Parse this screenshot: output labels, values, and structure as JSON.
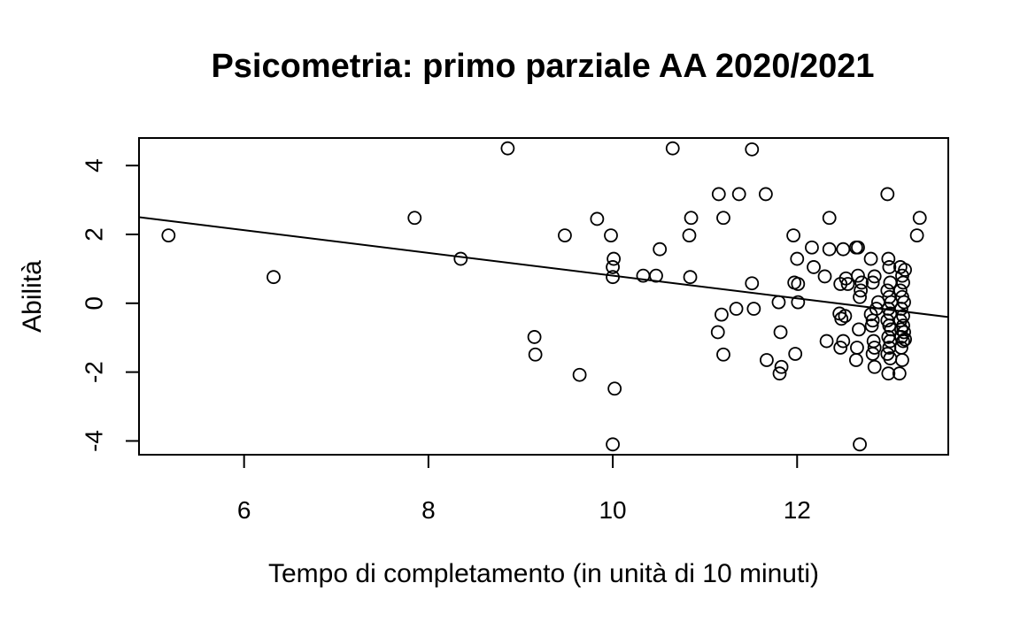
{
  "chart_data": {
    "type": "scatter",
    "title": "Psicometria: primo parziale AA 2020/2021",
    "xlabel": "Tempo di completamento (in unità di 10 minuti)",
    "ylabel": "Abilità",
    "xlim": [
      4.86,
      13.64
    ],
    "ylim": [
      -4.4,
      4.8
    ],
    "x_ticks": [
      6,
      8,
      10,
      12
    ],
    "y_ticks": [
      -4,
      -2,
      0,
      2,
      4
    ],
    "y_tick_labels": [
      "-4",
      "-2",
      "0",
      "2",
      "4"
    ],
    "grid": false,
    "legend": "none",
    "marker": "open-circle",
    "colors": {
      "points": "#000000",
      "line": "#000000",
      "background": "#ffffff"
    },
    "regression_line": {
      "x": [
        4.86,
        13.64
      ],
      "y": [
        2.5,
        -0.4
      ]
    },
    "points": [
      [
        5.18,
        1.97
      ],
      [
        6.32,
        0.76
      ],
      [
        7.85,
        2.48
      ],
      [
        8.35,
        1.29
      ],
      [
        8.86,
        4.5
      ],
      [
        9.15,
        -0.98
      ],
      [
        9.16,
        -1.49
      ],
      [
        9.48,
        1.97
      ],
      [
        9.64,
        -2.08
      ],
      [
        9.83,
        2.45
      ],
      [
        9.98,
        1.97
      ],
      [
        10.0,
        1.05
      ],
      [
        10.0,
        0.76
      ],
      [
        10.01,
        1.29
      ],
      [
        10.02,
        -2.48
      ],
      [
        10.0,
        -4.1
      ],
      [
        10.33,
        0.8
      ],
      [
        10.47,
        0.8
      ],
      [
        10.51,
        1.57
      ],
      [
        10.65,
        4.5
      ],
      [
        10.83,
        1.97
      ],
      [
        10.84,
        0.76
      ],
      [
        10.85,
        2.48
      ],
      [
        11.15,
        3.17
      ],
      [
        11.14,
        -0.84
      ],
      [
        11.18,
        -0.33
      ],
      [
        11.2,
        2.48
      ],
      [
        11.2,
        -1.49
      ],
      [
        11.34,
        -0.16
      ],
      [
        11.37,
        3.17
      ],
      [
        11.51,
        4.47
      ],
      [
        11.51,
        0.58
      ],
      [
        11.53,
        -0.16
      ],
      [
        11.66,
        3.17
      ],
      [
        11.67,
        -1.65
      ],
      [
        11.8,
        0.03
      ],
      [
        11.82,
        -0.84
      ],
      [
        11.83,
        -1.85
      ],
      [
        11.81,
        -2.04
      ],
      [
        11.96,
        1.97
      ],
      [
        11.97,
        0.6
      ],
      [
        11.98,
        -1.47
      ],
      [
        12.0,
        1.29
      ],
      [
        12.01,
        0.56
      ],
      [
        12.01,
        0.03
      ],
      [
        12.16,
        1.62
      ],
      [
        12.18,
        1.05
      ],
      [
        12.3,
        0.78
      ],
      [
        12.32,
        -1.1
      ],
      [
        12.35,
        1.57
      ],
      [
        12.35,
        2.48
      ],
      [
        12.46,
        -0.3
      ],
      [
        12.48,
        -0.45
      ],
      [
        12.47,
        0.56
      ],
      [
        12.5,
        1.57
      ],
      [
        12.5,
        -1.1
      ],
      [
        12.47,
        -1.29
      ],
      [
        12.52,
        -0.37
      ],
      [
        12.53,
        0.72
      ],
      [
        12.55,
        0.56
      ],
      [
        12.64,
        1.62
      ],
      [
        12.66,
        1.62
      ],
      [
        12.66,
        0.8
      ],
      [
        12.64,
        -1.65
      ],
      [
        12.65,
        -1.29
      ],
      [
        12.67,
        -0.76
      ],
      [
        12.68,
        0.18
      ],
      [
        12.69,
        0.37
      ],
      [
        12.7,
        0.6
      ],
      [
        12.68,
        -4.1
      ],
      [
        12.8,
        1.29
      ],
      [
        12.82,
        0.6
      ],
      [
        12.84,
        0.78
      ],
      [
        12.8,
        -0.32
      ],
      [
        12.82,
        -0.5
      ],
      [
        12.81,
        -0.65
      ],
      [
        12.83,
        -1.1
      ],
      [
        12.84,
        -1.29
      ],
      [
        12.82,
        -1.47
      ],
      [
        12.84,
        -1.85
      ],
      [
        12.86,
        -0.16
      ],
      [
        12.88,
        0.03
      ],
      [
        12.98,
        3.17
      ],
      [
        12.99,
        1.29
      ],
      [
        13.0,
        1.05
      ],
      [
        13.01,
        0.6
      ],
      [
        12.98,
        0.37
      ],
      [
        13.0,
        0.18
      ],
      [
        13.02,
        0.03
      ],
      [
        12.99,
        -0.16
      ],
      [
        13.01,
        -0.3
      ],
      [
        12.98,
        -0.5
      ],
      [
        13.0,
        -0.65
      ],
      [
        13.02,
        -0.76
      ],
      [
        12.99,
        -0.98
      ],
      [
        13.01,
        -1.1
      ],
      [
        13.0,
        -1.29
      ],
      [
        12.98,
        -1.47
      ],
      [
        13.01,
        -1.6
      ],
      [
        12.99,
        -2.04
      ],
      [
        13.12,
        1.05
      ],
      [
        13.14,
        0.8
      ],
      [
        13.15,
        0.6
      ],
      [
        13.12,
        0.37
      ],
      [
        13.14,
        0.18
      ],
      [
        13.16,
        0.03
      ],
      [
        13.13,
        -0.16
      ],
      [
        13.15,
        -0.37
      ],
      [
        13.12,
        -0.5
      ],
      [
        13.15,
        -0.65
      ],
      [
        13.13,
        -0.76
      ],
      [
        13.16,
        -0.84
      ],
      [
        13.13,
        -0.98
      ],
      [
        13.15,
        -1.1
      ],
      [
        13.13,
        -1.29
      ],
      [
        13.14,
        -1.65
      ],
      [
        13.11,
        -2.04
      ],
      [
        13.17,
        0.97
      ],
      [
        13.17,
        -1.05
      ],
      [
        13.3,
        1.97
      ],
      [
        13.33,
        2.48
      ]
    ]
  }
}
